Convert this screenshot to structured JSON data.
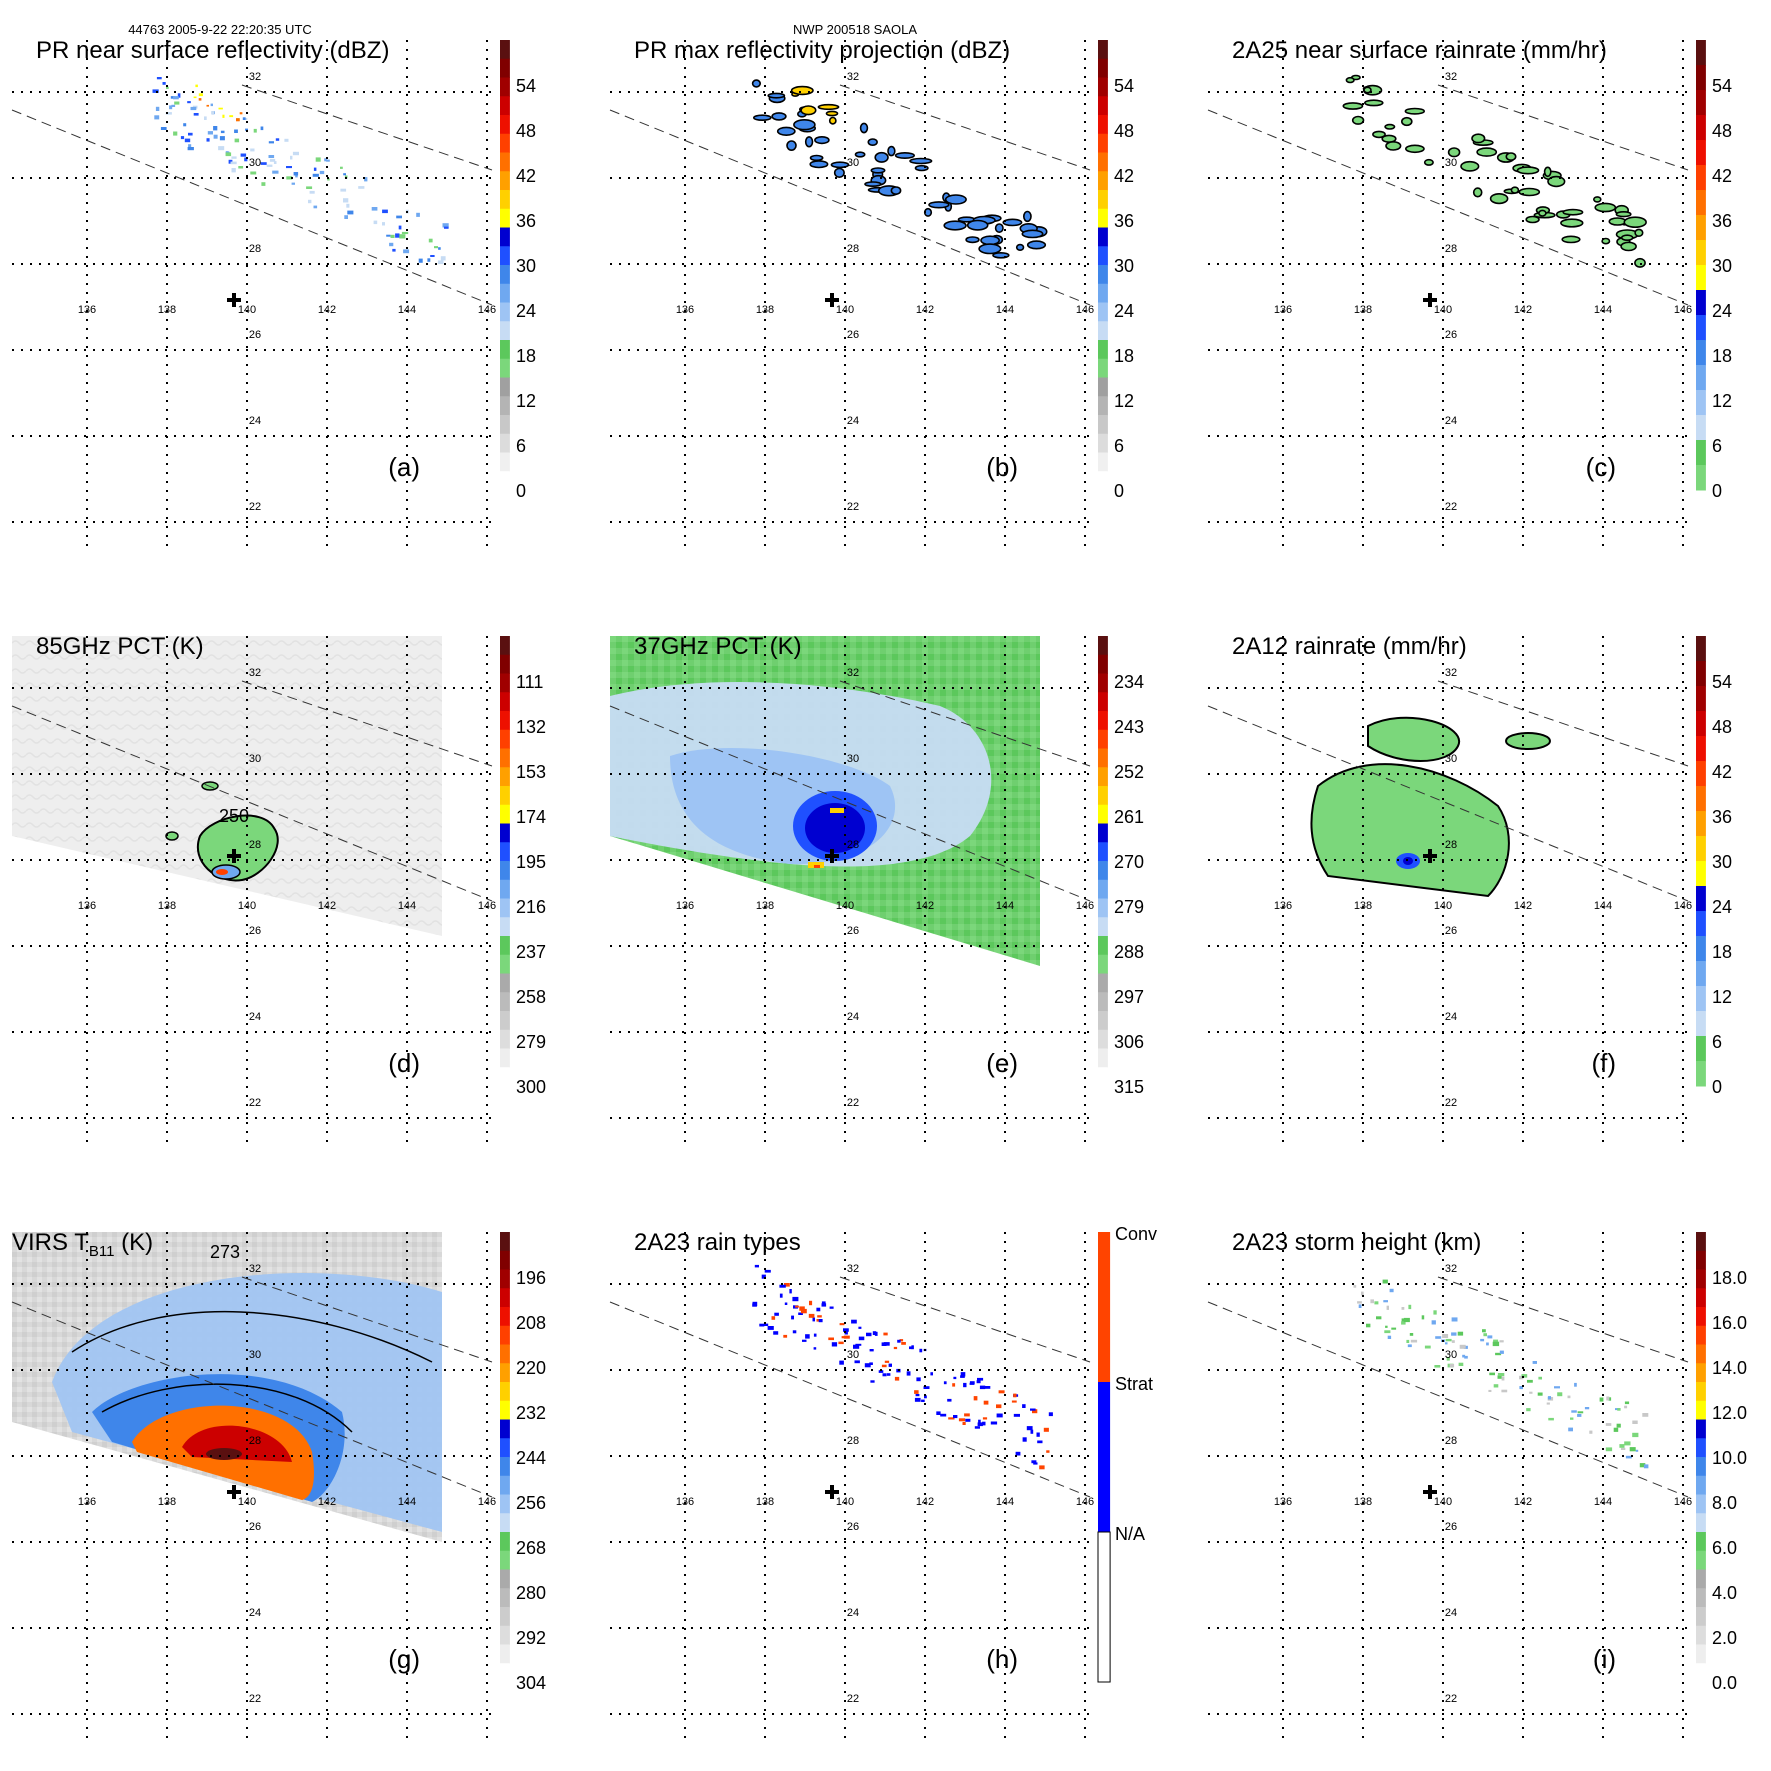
{
  "header": {
    "left": "44763 2005-9-22 22:20:35 UTC",
    "center": "NWP 200518 SAOLA"
  },
  "grid_labels": {
    "lon": [
      "136",
      "138",
      "140",
      "142",
      "144",
      "146"
    ],
    "lat": [
      "32",
      "30",
      "28",
      "26",
      "24",
      "22"
    ]
  },
  "panels": [
    {
      "id": "a",
      "title": "PR near surface reflectivity (dBZ)",
      "letter": "(a)",
      "type": "pr_near",
      "colorbar": {
        "scheme": "dbz",
        "labels": [
          "54",
          "48",
          "42",
          "36",
          "30",
          "24",
          "18",
          "12",
          "6",
          "0"
        ]
      }
    },
    {
      "id": "b",
      "title": "PR max reflectivity projection (dBZ)",
      "letter": "(b)",
      "type": "pr_max",
      "colorbar": {
        "scheme": "dbz",
        "labels": [
          "54",
          "48",
          "42",
          "36",
          "30",
          "24",
          "18",
          "12",
          "6",
          "0"
        ]
      }
    },
    {
      "id": "c",
      "title": "2A25 near surface rainrate (mm/hr)",
      "letter": "(c)",
      "type": "rain25",
      "colorbar": {
        "scheme": "rain",
        "labels": [
          "54",
          "48",
          "42",
          "36",
          "30",
          "24",
          "18",
          "12",
          "6",
          "0"
        ]
      }
    },
    {
      "id": "d",
      "title": "85GHz PCT (K)",
      "letter": "(d)",
      "type": "pct85",
      "contour_label": "250",
      "colorbar": {
        "scheme": "pct",
        "labels": [
          "111",
          "132",
          "153",
          "174",
          "195",
          "216",
          "237",
          "258",
          "279",
          "300"
        ]
      }
    },
    {
      "id": "e",
      "title": "37GHz PCT (K)",
      "letter": "(e)",
      "type": "pct37",
      "colorbar": {
        "scheme": "pct",
        "labels": [
          "234",
          "243",
          "252",
          "261",
          "270",
          "279",
          "288",
          "297",
          "306",
          "315"
        ]
      }
    },
    {
      "id": "f",
      "title": "2A12 rainrate (mm/hr)",
      "letter": "(f)",
      "type": "rain12",
      "colorbar": {
        "scheme": "rain",
        "labels": [
          "54",
          "48",
          "42",
          "36",
          "30",
          "24",
          "18",
          "12",
          "6",
          "0"
        ]
      }
    },
    {
      "id": "g",
      "title_prefix": "VIRS T",
      "title_sub": "B11",
      "title_suffix": " (K)",
      "letter": "(g)",
      "type": "virs",
      "contour_label": "273",
      "colorbar": {
        "scheme": "virs",
        "labels": [
          "196",
          "208",
          "220",
          "232",
          "244",
          "256",
          "268",
          "280",
          "292",
          "304"
        ]
      }
    },
    {
      "id": "h",
      "title": "2A23 rain types",
      "letter": "(h)",
      "type": "types",
      "colorbar": {
        "scheme": "types",
        "labels": [
          "Conv",
          "Strat",
          "N/A"
        ]
      }
    },
    {
      "id": "i",
      "title": "2A23 storm height (km)",
      "letter": "(i)",
      "type": "height",
      "colorbar": {
        "scheme": "height",
        "labels": [
          "18.0",
          "16.0",
          "14.0",
          "12.0",
          "10.0",
          "8.0",
          "6.0",
          "4.0",
          "2.0",
          "0.0"
        ]
      }
    }
  ],
  "colors": {
    "dbz": [
      "#ffffff",
      "#f0f0f0",
      "#dcdcdc",
      "#c8c8c8",
      "#b4b4b4",
      "#a0a0a0",
      "#7bd77b",
      "#5cc85c",
      "#c7dcf4",
      "#9ec4f4",
      "#6fa8f0",
      "#3f86ea",
      "#1f50ff",
      "#0000d0",
      "#ffff00",
      "#ffd000",
      "#ffa000",
      "#ff7000",
      "#ff4000",
      "#ee1000",
      "#cc0000",
      "#a00000",
      "#800000",
      "#5a1010"
    ],
    "rain": [
      "#7bd77b",
      "#5cc85c",
      "#c7dcf4",
      "#9ec4f4",
      "#6fa8f0",
      "#3f86ea",
      "#1f50ff",
      "#0000d0",
      "#ffff00",
      "#ffd000",
      "#ffa000",
      "#ff7000",
      "#ff4000",
      "#ee1000",
      "#cc0000",
      "#a00000",
      "#800000",
      "#5a1010"
    ],
    "pct": [
      "#ffffff",
      "#eeeeee",
      "#dddddd",
      "#cccccc",
      "#bbbbbb",
      "#aaaaaa",
      "#7bd77b",
      "#5cc85c",
      "#c7dcf4",
      "#9ec4f4",
      "#6fa8f0",
      "#3f86ea",
      "#1f50ff",
      "#0000d0",
      "#ffff00",
      "#ffd000",
      "#ffa000",
      "#ff7000",
      "#ff4000",
      "#ee1000",
      "#cc0000",
      "#a00000",
      "#800000",
      "#5a1010"
    ],
    "types": {
      "conv": "#ff4400",
      "strat": "#0000ff",
      "na": "#ffffff"
    }
  }
}
